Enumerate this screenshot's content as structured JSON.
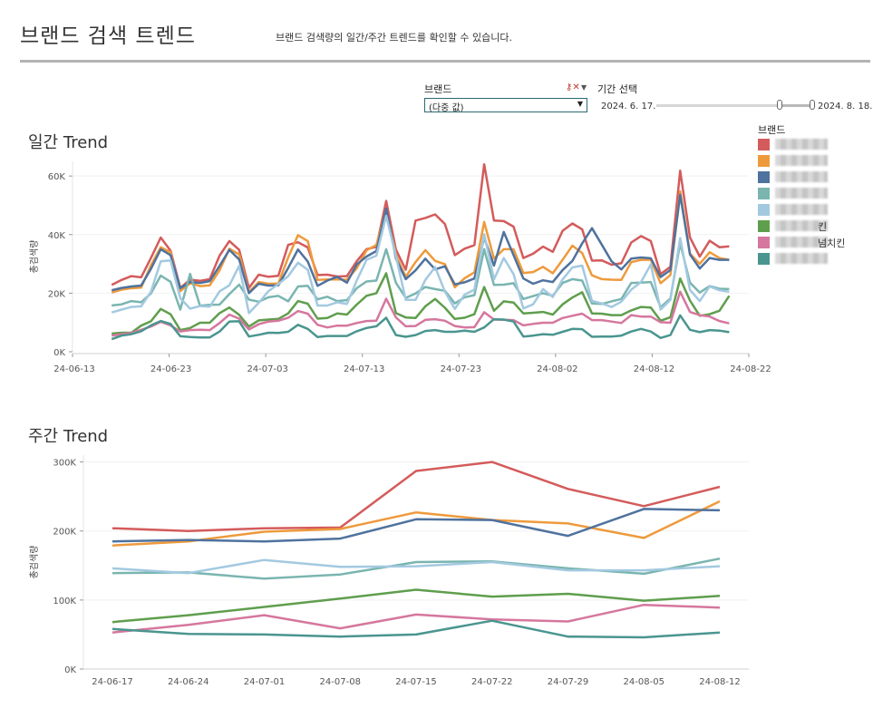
{
  "header": {
    "title": "브랜드 검색 트렌드",
    "subtitle": "브랜드 검색량의 일간/주간 트렌드를 확인할 수 있습니다."
  },
  "filters": {
    "brand_label": "브랜드",
    "brand_value": "(다중 값)",
    "period_label": "기간 선택",
    "period_start": "2024. 6. 17.",
    "period_end": "2024. 8. 18.",
    "period_range_fraction": [
      0.78,
      1.0
    ]
  },
  "legend": {
    "title": "브랜드",
    "items": [
      {
        "color": "#d45b5b",
        "suffix": ""
      },
      {
        "color": "#ee9a3c",
        "suffix": ""
      },
      {
        "color": "#4f729e",
        "suffix": ""
      },
      {
        "color": "#7ab5b0",
        "suffix": ""
      },
      {
        "color": "#a3c9e0",
        "suffix": ""
      },
      {
        "color": "#5f9e4d",
        "suffix": "킨"
      },
      {
        "color": "#d5779e",
        "suffix": "넘치킨"
      },
      {
        "color": "#4a958f",
        "suffix": ""
      }
    ]
  },
  "chart_data": [
    {
      "type": "line",
      "title": "일간 Trend",
      "ylabel": "총검색량",
      "ylim": [
        0,
        65000
      ],
      "yticks": [
        0,
        20000,
        40000,
        60000
      ],
      "ytick_labels": [
        "0K",
        "20K",
        "40K",
        "60K"
      ],
      "xtick_labels": [
        "24-06-13",
        "24-06-23",
        "24-07-03",
        "24-07-13",
        "24-07-23",
        "24-08-02",
        "24-08-12",
        "24-08-22"
      ],
      "x_start": 0,
      "x_end": 69,
      "x_first_data": 4,
      "x_last_data": 67,
      "series": [
        {
          "color": "#d45b5b",
          "values": [
            22800,
            24500,
            25800,
            25400,
            32000,
            39000,
            34500,
            21800,
            24600,
            24200,
            24800,
            32800,
            37800,
            34800,
            21800,
            26300,
            25600,
            25900,
            36500,
            37400,
            35600,
            26200,
            26300,
            25700,
            25800,
            30900,
            35000,
            35800,
            51500,
            34800,
            28000,
            44800,
            45700,
            46900,
            43600,
            33000,
            35200,
            36400,
            64000,
            44800,
            44600,
            42700,
            32000,
            33500,
            35900,
            34100,
            41300,
            43800,
            41800,
            31100,
            31200,
            29700,
            30200,
            37300,
            39500,
            37800,
            26500,
            29000,
            61800,
            39000,
            32500,
            37900,
            35700,
            36000
          ]
        },
        {
          "color": "#ee9a3c",
          "values": [
            20200,
            21200,
            21700,
            21900,
            29500,
            35700,
            34000,
            20700,
            23400,
            22400,
            22700,
            27800,
            35200,
            33200,
            20400,
            23800,
            23200,
            23300,
            32200,
            39800,
            37800,
            24500,
            24700,
            24700,
            24600,
            28500,
            34600,
            36500,
            48500,
            33000,
            25600,
            30600,
            34700,
            31000,
            29900,
            22000,
            25100,
            27100,
            44300,
            31800,
            35000,
            35000,
            26900,
            27200,
            29000,
            26800,
            31400,
            36200,
            33700,
            26100,
            24800,
            24600,
            24500,
            30600,
            31400,
            31400,
            23400,
            26200,
            54800,
            33500,
            30000,
            34000,
            32000,
            31400
          ]
        },
        {
          "color": "#4f729e",
          "values": [
            21000,
            21800,
            22300,
            22600,
            28300,
            35000,
            33000,
            21700,
            23800,
            23500,
            24100,
            29300,
            34800,
            31500,
            20000,
            23200,
            22600,
            22700,
            28600,
            34900,
            30800,
            22500,
            24300,
            25600,
            23600,
            29800,
            32500,
            34400,
            48900,
            31800,
            24800,
            27800,
            31800,
            28100,
            29200,
            23000,
            23700,
            25000,
            39000,
            29400,
            40900,
            33000,
            25000,
            23200,
            24400,
            23800,
            27900,
            31000,
            37000,
            42200,
            36600,
            30900,
            28100,
            31800,
            32200,
            31900,
            25500,
            27900,
            53600,
            33200,
            28400,
            32000,
            31400,
            31400
          ]
        },
        {
          "color": "#7ab5b0",
          "values": [
            15800,
            16200,
            17300,
            16900,
            19900,
            26000,
            23900,
            14400,
            26600,
            15700,
            16000,
            16100,
            19700,
            22900,
            17800,
            17100,
            18600,
            19100,
            17200,
            22300,
            22500,
            17900,
            18800,
            17300,
            17600,
            21700,
            24000,
            24300,
            35000,
            23500,
            18400,
            19900,
            22100,
            21400,
            20800,
            16500,
            18600,
            19300,
            35000,
            22800,
            22900,
            23400,
            18000,
            19000,
            20000,
            19100,
            23500,
            24800,
            24300,
            16500,
            16300,
            17200,
            18000,
            23500,
            23600,
            23800,
            15200,
            18200,
            37000,
            23600,
            20200,
            22400,
            21500,
            21400
          ]
        },
        {
          "color": "#a3c9e0",
          "values": [
            13400,
            14400,
            15300,
            15500,
            20500,
            30900,
            31200,
            18300,
            14700,
            15600,
            15400,
            20600,
            22700,
            29300,
            13200,
            16700,
            20700,
            23100,
            25800,
            30400,
            28000,
            15800,
            15800,
            16900,
            16300,
            24300,
            31400,
            32800,
            46400,
            32600,
            17700,
            17700,
            24500,
            28900,
            20500,
            14600,
            19500,
            21200,
            40100,
            24700,
            32000,
            26500,
            14800,
            16200,
            21400,
            18700,
            24700,
            28800,
            29400,
            17400,
            16500,
            15300,
            17100,
            21200,
            23800,
            29800,
            14400,
            17700,
            38800,
            21100,
            17300,
            22300,
            21000,
            20500
          ]
        },
        {
          "color": "#5f9e4d",
          "values": [
            6200,
            6500,
            6500,
            8900,
            10400,
            14600,
            12800,
            7400,
            8100,
            9900,
            9900,
            13200,
            15100,
            12600,
            8600,
            10700,
            11000,
            11200,
            13100,
            17300,
            16400,
            11300,
            11500,
            13100,
            12700,
            16100,
            19100,
            20000,
            26800,
            13200,
            11700,
            11500,
            15500,
            18000,
            15000,
            11200,
            11600,
            12800,
            22100,
            14000,
            17200,
            16800,
            13100,
            13300,
            13600,
            12700,
            16200,
            18500,
            20300,
            13100,
            13000,
            12500,
            12500,
            14100,
            15300,
            15100,
            10600,
            11800,
            25000,
            17500,
            12300,
            12800,
            14000,
            19100
          ]
        },
        {
          "color": "#d5779e",
          "values": [
            5500,
            6000,
            6400,
            7500,
            8600,
            10200,
            9000,
            6900,
            7400,
            7500,
            7400,
            9800,
            12700,
            11300,
            7600,
            9400,
            10300,
            10600,
            11600,
            13900,
            13000,
            9200,
            8300,
            8900,
            8900,
            9800,
            10500,
            10600,
            18100,
            11700,
            8700,
            8800,
            10900,
            11100,
            10600,
            8800,
            8300,
            8400,
            13500,
            11000,
            10900,
            10800,
            9000,
            9500,
            9900,
            9900,
            11500,
            12300,
            13000,
            10800,
            10800,
            10300,
            9800,
            12500,
            12000,
            12000,
            10100,
            9900,
            20500,
            13600,
            12500,
            12000,
            10500,
            9700
          ]
        },
        {
          "color": "#4a958f",
          "values": [
            4300,
            5500,
            6000,
            7000,
            9000,
            10500,
            9500,
            5300,
            5000,
            4900,
            4900,
            6900,
            10300,
            10400,
            5200,
            5800,
            6500,
            6400,
            6800,
            9200,
            7800,
            5000,
            5400,
            5400,
            5400,
            7000,
            8100,
            8700,
            11600,
            5700,
            5100,
            5700,
            7100,
            7400,
            6800,
            6800,
            7200,
            6800,
            8300,
            11100,
            11000,
            10300,
            5200,
            5500,
            6000,
            5800,
            6800,
            7800,
            7700,
            5100,
            5200,
            5200,
            5500,
            6900,
            7800,
            6900,
            4700,
            5700,
            12400,
            7500,
            6700,
            7400,
            7200,
            6700
          ]
        }
      ]
    },
    {
      "type": "line",
      "title": "주간 Trend",
      "ylabel": "총검색량",
      "ylim": [
        0,
        310000
      ],
      "yticks": [
        0,
        100000,
        200000,
        300000
      ],
      "ytick_labels": [
        "0K",
        "100K",
        "200K",
        "300K"
      ],
      "categories": [
        "24-06-17",
        "24-06-24",
        "24-07-01",
        "24-07-08",
        "24-07-15",
        "24-07-22",
        "24-07-29",
        "24-08-05",
        "24-08-12"
      ],
      "series": [
        {
          "color": "#d45b5b",
          "values": [
            204000,
            200000,
            204000,
            205000,
            287000,
            300000,
            261000,
            236000,
            264000
          ]
        },
        {
          "color": "#ee9a3c",
          "values": [
            179000,
            185000,
            199000,
            203000,
            227000,
            216000,
            211000,
            190000,
            243000
          ]
        },
        {
          "color": "#4f729e",
          "values": [
            185000,
            187000,
            185000,
            189000,
            217000,
            216000,
            193000,
            232000,
            230000
          ]
        },
        {
          "color": "#7ab5b0",
          "values": [
            139000,
            140000,
            131000,
            137000,
            155000,
            156000,
            146000,
            138000,
            160000
          ]
        },
        {
          "color": "#a3c9e0",
          "values": [
            146000,
            139000,
            158000,
            148000,
            149000,
            155000,
            143000,
            143000,
            149000
          ]
        },
        {
          "color": "#5f9e4d",
          "values": [
            68000,
            78000,
            90000,
            102000,
            115000,
            105000,
            109000,
            99000,
            106000
          ]
        },
        {
          "color": "#d5779e",
          "values": [
            53000,
            64000,
            78000,
            59000,
            79000,
            72000,
            69000,
            93000,
            89000
          ]
        },
        {
          "color": "#4a958f",
          "values": [
            58000,
            51000,
            50000,
            47000,
            50000,
            70000,
            47000,
            46000,
            53000
          ]
        }
      ]
    }
  ]
}
